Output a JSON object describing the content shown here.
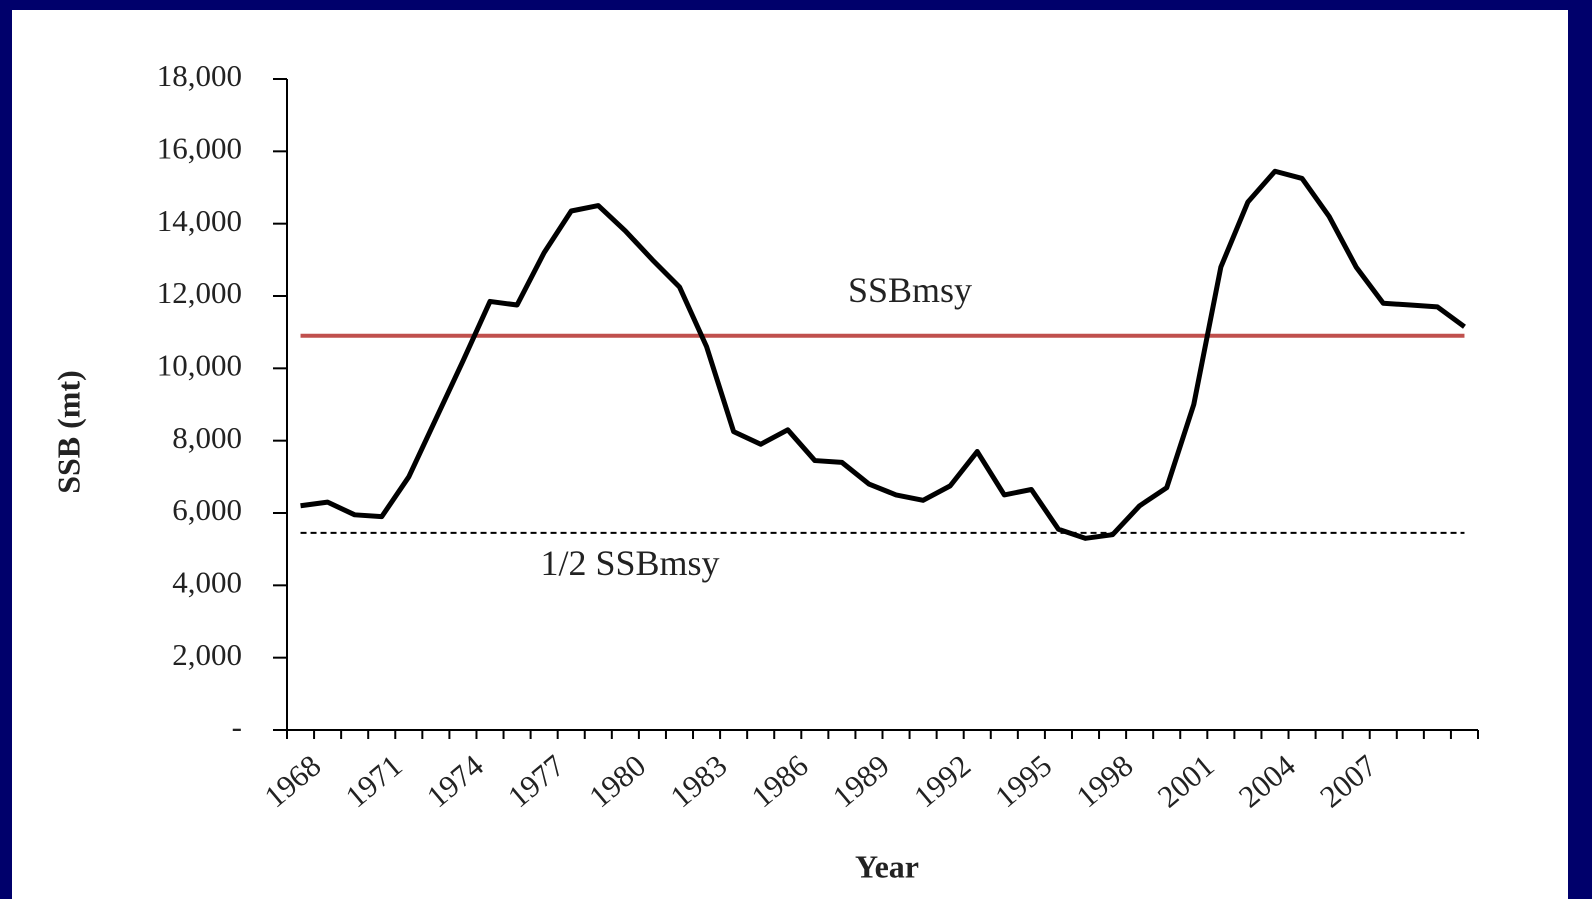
{
  "chart_data": {
    "type": "line",
    "y_label": "SSB (mt)",
    "x_label": "Year",
    "categories": [
      "1968",
      null,
      null,
      "1971",
      null,
      null,
      "1974",
      null,
      null,
      "1977",
      null,
      null,
      "1980",
      null,
      null,
      "1983",
      null,
      null,
      "1986",
      null,
      null,
      "1989",
      null,
      null,
      "1992",
      null,
      null,
      "1995",
      null,
      null,
      "1998",
      null,
      null,
      "2001",
      null,
      null,
      "2004",
      null,
      null,
      "2007",
      null,
      null,
      null,
      null
    ],
    "values": [
      6200,
      6300,
      5950,
      5900,
      7000,
      8600,
      10200,
      11850,
      11750,
      13200,
      14350,
      14500,
      13800,
      13000,
      12250,
      10600,
      8250,
      7900,
      8300,
      7450,
      7400,
      6800,
      6500,
      6350,
      6750,
      7700,
      6500,
      6650,
      5550,
      5300,
      5400,
      6200,
      6700,
      9000,
      12800,
      14600,
      15450,
      15250,
      14200,
      12800,
      11800,
      11750,
      11700,
      11150
    ],
    "color": "#000000",
    "reference_lines": [
      {
        "label": "SSBmsy",
        "value": 10900,
        "color": "#c0504d",
        "style": "solid"
      },
      {
        "label": "1/2 SSBmsy",
        "value": 5450,
        "color": "#000000",
        "style": "dashed"
      }
    ],
    "ylim": [
      0,
      18000
    ],
    "yticks": [
      {
        "value": 0,
        "label": "-"
      },
      {
        "value": 2000,
        "label": "2,000"
      },
      {
        "value": 4000,
        "label": "4,000"
      },
      {
        "value": 6000,
        "label": "6,000"
      },
      {
        "value": 8000,
        "label": "8,000"
      },
      {
        "value": 10000,
        "label": "10,000"
      },
      {
        "value": 12000,
        "label": "12,000"
      },
      {
        "value": 14000,
        "label": "14,000"
      },
      {
        "value": 16000,
        "label": "16,000"
      },
      {
        "value": 18000,
        "label": "18,000"
      }
    ],
    "grid": false
  }
}
